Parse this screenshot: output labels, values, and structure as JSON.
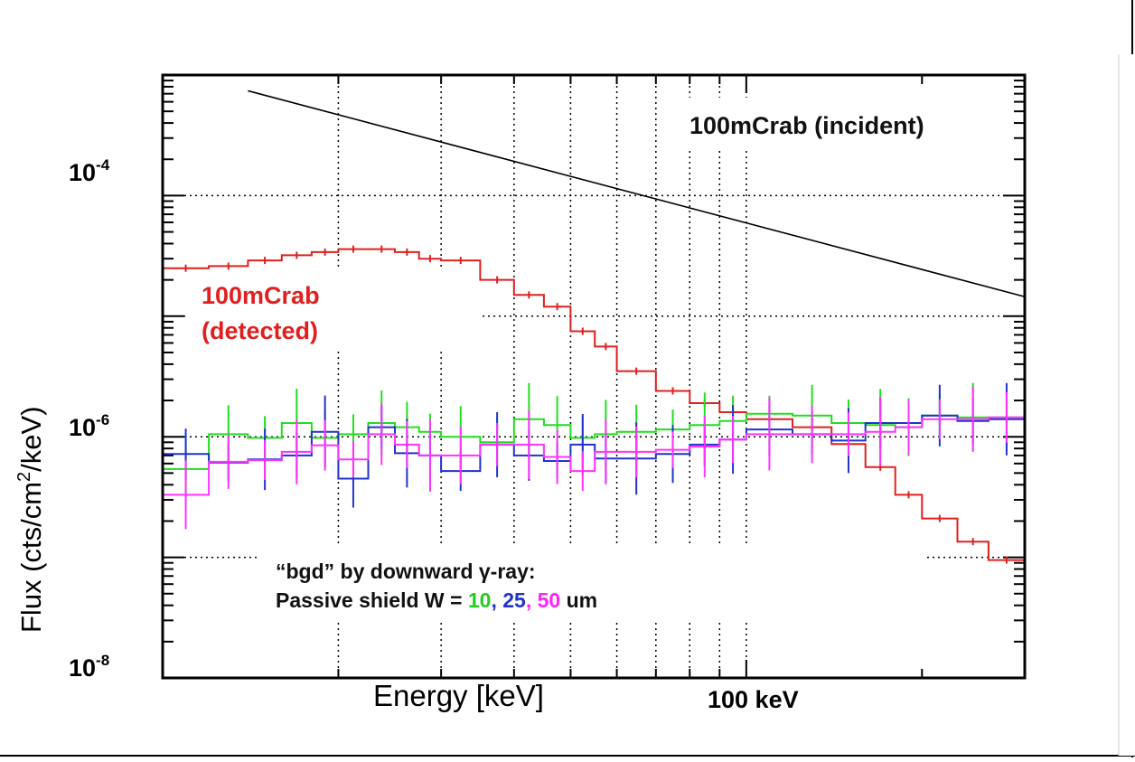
{
  "chart_data": {
    "type": "line",
    "title": "",
    "xlabel": "Energy [keV]",
    "ylabel": "Flux (cts/cm2/keV)",
    "ylabel_parts": {
      "pre": "Flux (cts/cm",
      "sup": "2",
      "post": "/keV)"
    },
    "x_scale": "log",
    "y_scale": "log",
    "xlim": [
      10,
      300
    ],
    "ylim": [
      1e-08,
      0.001
    ],
    "x_tick_label": {
      "value": 100,
      "text": "100 keV"
    },
    "y_tick_labels": [
      {
        "value": 0.0001,
        "base": "10",
        "exp": "-4"
      },
      {
        "value": 1e-06,
        "base": "10",
        "exp": "-6"
      },
      {
        "value": 1e-08,
        "base": "10",
        "exp": "-8"
      }
    ],
    "grid": true,
    "grid_x": [
      20,
      30,
      40,
      50,
      60,
      70,
      80,
      90,
      100
    ],
    "grid_y": [
      1e-07,
      1e-06,
      1e-05,
      0.0001
    ],
    "bin_edges": [
      10,
      12,
      14,
      16,
      18,
      20,
      22.5,
      25,
      27.5,
      30,
      35,
      40,
      45,
      50,
      55,
      60,
      70,
      80,
      90,
      100,
      120,
      140,
      160,
      180,
      200,
      230,
      260,
      300
    ],
    "series": [
      {
        "name": "100mCrab (incident)",
        "color": "#000000",
        "style": "line",
        "x": [
          14,
          300
        ],
        "y": [
          0.00074,
          1.45e-05
        ]
      },
      {
        "name": "100mCrab (detected)",
        "color": "#e02020",
        "style": "histogram",
        "values": [
          2.5e-05,
          2.6e-05,
          2.9e-05,
          3.2e-05,
          3.4e-05,
          3.6e-05,
          3.6e-05,
          3.4e-05,
          3e-05,
          2.9e-05,
          2e-05,
          1.5e-05,
          1.2e-05,
          7.5e-06,
          5.6e-06,
          3.5e-06,
          2.4e-06,
          1.9e-06,
          1.6e-06,
          1.4e-06,
          1.2e-06,
          8.7e-07,
          5.6e-07,
          3.3e-07,
          2.1e-07,
          1.35e-07,
          9.5e-08
        ]
      },
      {
        "name": "10",
        "color": "#22dd22",
        "style": "histogram",
        "values": [
          5.4e-07,
          1.05e-06,
          9.8e-07,
          1.3e-06,
          9.8e-07,
          1.05e-06,
          1.3e-06,
          1.2e-06,
          1.1e-06,
          1e-06,
          9e-07,
          1.4e-06,
          1.25e-06,
          9.8e-07,
          1.05e-06,
          1.1e-06,
          1.15e-06,
          1.25e-06,
          1.35e-06,
          1.55e-06,
          1.5e-06,
          1.3e-06,
          1.25e-06,
          1.2e-06,
          1.5e-06,
          1.45e-06,
          1.45e-06
        ]
      },
      {
        "name": "25",
        "color": "#2233cc",
        "style": "histogram",
        "values": [
          7.2e-07,
          6.1e-07,
          6.5e-07,
          7e-07,
          1.1e-06,
          4.5e-07,
          1.2e-06,
          7.3e-07,
          7e-07,
          5.2e-07,
          8.6e-07,
          7e-07,
          6.3e-07,
          8.6e-07,
          6.6e-07,
          6.6e-07,
          7.2e-07,
          8.6e-07,
          9.5e-07,
          1.15e-06,
          1.05e-06,
          9.3e-07,
          1.3e-06,
          1.3e-06,
          1.5e-06,
          1.35e-06,
          1.4e-06
        ]
      },
      {
        "name": "50",
        "color": "#ff33ff",
        "style": "histogram",
        "values": [
          3.3e-07,
          6.2e-07,
          6.4e-07,
          7.5e-07,
          8.5e-07,
          6.5e-07,
          1.05e-06,
          8.6e-07,
          7e-07,
          7e-07,
          8.6e-07,
          8.6e-07,
          6.8e-07,
          5.2e-07,
          7.5e-07,
          7.5e-07,
          7.8e-07,
          8.3e-07,
          9.5e-07,
          1.05e-06,
          1.05e-06,
          1.05e-06,
          1.1e-06,
          1.2e-06,
          1.4e-06,
          1.4e-06,
          1.45e-06
        ]
      }
    ],
    "annotations": {
      "incident_label": "100mCrab (incident)",
      "detected_label_line1": "100mCrab",
      "detected_label_line2": "(detected)",
      "bgd_line1": "“bgd”  by downward γ-ray:",
      "bgd_line2_prefix": "Passive shield W = ",
      "bgd_values": [
        "10",
        "25",
        "50"
      ],
      "bgd_separator": ", ",
      "bgd_unit": " um"
    }
  }
}
